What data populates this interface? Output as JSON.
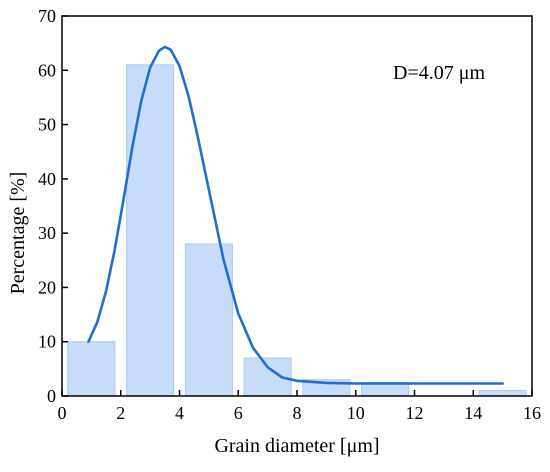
{
  "chart_data": {
    "type": "bar",
    "title": "",
    "xlabel": "Grain diameter [μm]",
    "ylabel": "Percentage [%]",
    "annotation": "D=4.07 μm",
    "xlim": [
      0,
      16
    ],
    "ylim": [
      0,
      70
    ],
    "xticks": [
      0,
      2,
      4,
      6,
      8,
      10,
      12,
      14,
      16
    ],
    "yticks": [
      0,
      10,
      20,
      30,
      40,
      50,
      60,
      70
    ],
    "bars": [
      {
        "x0": 0.2,
        "x1": 1.8,
        "value": 10
      },
      {
        "x0": 2.2,
        "x1": 3.8,
        "value": 61
      },
      {
        "x0": 4.2,
        "x1": 5.8,
        "value": 28
      },
      {
        "x0": 6.2,
        "x1": 7.8,
        "value": 7
      },
      {
        "x0": 8.2,
        "x1": 9.8,
        "value": 3
      },
      {
        "x0": 10.2,
        "x1": 11.8,
        "value": 2.5
      },
      {
        "x0": 14.2,
        "x1": 15.8,
        "value": 1
      }
    ],
    "fit_curve": {
      "x": [
        0.9,
        1.2,
        1.5,
        1.8,
        2.1,
        2.4,
        2.7,
        3.0,
        3.3,
        3.5,
        3.7,
        4.0,
        4.3,
        4.6,
        5.0,
        5.5,
        6.0,
        6.5,
        7.0,
        7.5,
        8.0,
        9.0,
        10.0,
        11.0,
        12.0,
        13.0,
        14.0,
        15.0
      ],
      "y": [
        10,
        13.6,
        19.3,
        27.1,
        36.4,
        46.0,
        54.4,
        60.5,
        63.6,
        64.3,
        63.8,
        60.8,
        55.4,
        48.3,
        38.0,
        25.1,
        15.2,
        8.9,
        5.3,
        3.4,
        2.8,
        2.4,
        2.3,
        2.3,
        2.3,
        2.3,
        2.3,
        2.3
      ]
    },
    "colors": {
      "bar_fill": "#c6dcf8",
      "bar_stroke": "#a9c8f0",
      "curve": "#1f6fd0",
      "axis": "#000000"
    },
    "grid": false,
    "legend": "none"
  }
}
